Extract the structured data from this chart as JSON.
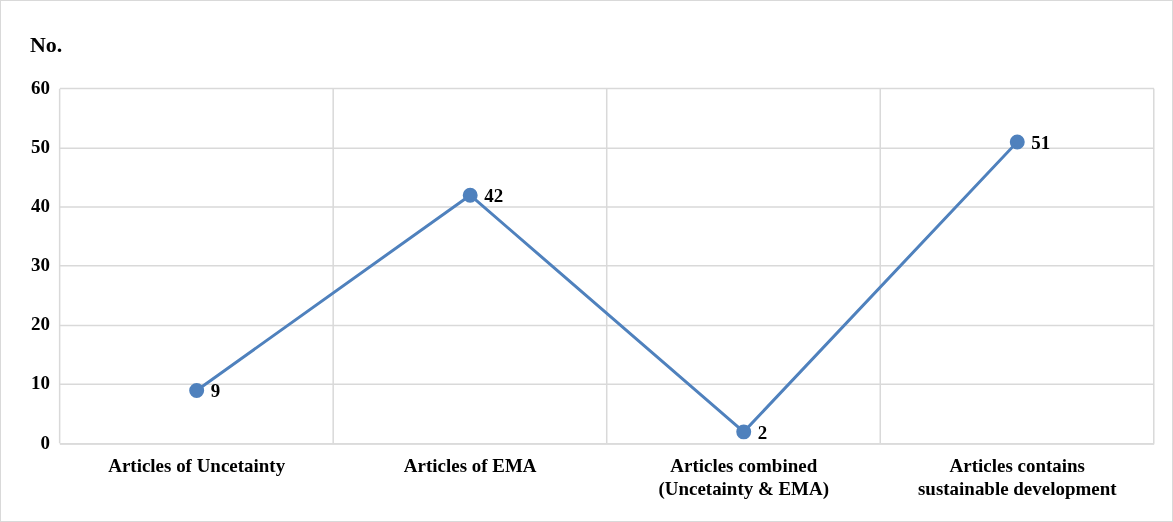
{
  "chart_data": {
    "type": "line",
    "ylabel": "No.",
    "categories": [
      "Articles of Uncetainty",
      "Articles of EMA",
      "Articles combined (Uncetainty & EMA)",
      "Articles contains sustainable development"
    ],
    "series": [
      {
        "color": "#4f81bd",
        "values": [
          9,
          42,
          2,
          51
        ]
      }
    ],
    "ylim": [
      0,
      60
    ],
    "yticks": [
      0,
      10,
      20,
      30,
      40,
      50,
      60
    ],
    "grid": true,
    "marker": "circle",
    "line_style": "solid",
    "data_labels": true,
    "legend": false
  }
}
